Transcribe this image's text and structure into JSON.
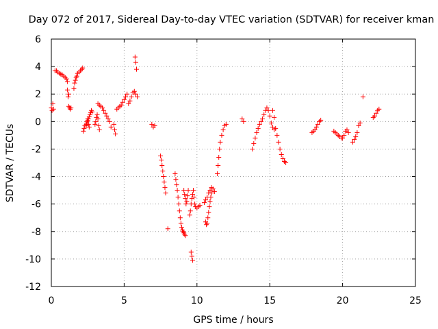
{
  "chart_data": {
    "type": "scatter",
    "title": "Day 072 of 2017, Sidereal Day-to-day VTEC variation (SDTVAR) for receiver kman",
    "xlabel": "GPS time / hours",
    "ylabel": "SDTVAR / TECUs",
    "xlim": [
      0,
      25
    ],
    "ylim": [
      -12,
      6
    ],
    "xticks": [
      0,
      5,
      10,
      15,
      20,
      25
    ],
    "yticks": [
      -12,
      -10,
      -8,
      -6,
      -4,
      -2,
      0,
      2,
      4,
      6
    ],
    "grid": true,
    "marker": "+",
    "color": "#ff0000",
    "segments": [
      {
        "x": [
          0.0,
          0.05,
          0.1,
          0.15
        ],
        "y": [
          1.0,
          0.8,
          1.3,
          0.9
        ]
      },
      {
        "x": [
          0.25,
          0.35,
          0.45,
          0.55,
          0.65,
          0.75,
          0.85,
          0.95,
          1.05,
          1.1
        ],
        "y": [
          3.7,
          3.7,
          3.6,
          3.5,
          3.45,
          3.4,
          3.3,
          3.2,
          3.1,
          2.9
        ]
      },
      {
        "x": [
          1.1,
          1.15,
          1.2
        ],
        "y": [
          2.3,
          1.8,
          2.0
        ]
      },
      {
        "x": [
          1.2,
          1.25,
          1.3,
          1.35
        ],
        "y": [
          1.1,
          1.0,
          0.9,
          1.0
        ]
      },
      {
        "x": [
          1.55,
          1.6,
          1.65,
          1.7,
          1.75,
          1.8,
          1.9,
          2.0,
          2.1,
          2.15
        ],
        "y": [
          2.4,
          2.8,
          3.0,
          3.2,
          3.3,
          3.5,
          3.6,
          3.7,
          3.8,
          3.9
        ]
      },
      {
        "x": [
          2.2,
          2.25,
          2.3,
          2.4,
          2.45,
          2.5,
          2.55,
          2.6,
          2.65,
          2.7,
          2.75,
          2.8
        ],
        "y": [
          -0.7,
          -0.5,
          -0.3,
          -0.2,
          0.0,
          0.1,
          0.2,
          0.35,
          0.5,
          0.65,
          0.8,
          0.7
        ]
      },
      {
        "x": [
          2.4,
          2.45,
          2.5,
          2.55,
          2.6
        ],
        "y": [
          -0.3,
          -0.1,
          0.2,
          -0.2,
          -0.4
        ]
      },
      {
        "x": [
          3.0,
          3.05,
          3.1,
          3.15,
          3.2,
          3.25,
          3.3
        ],
        "y": [
          -0.2,
          0.0,
          0.3,
          0.5,
          0.2,
          -0.3,
          -0.6
        ]
      },
      {
        "x": [
          3.2,
          3.3,
          3.4,
          3.5,
          3.6,
          3.7,
          3.8,
          3.9,
          4.0,
          4.1
        ],
        "y": [
          1.3,
          1.2,
          1.1,
          1.0,
          0.8,
          0.6,
          0.4,
          0.2,
          0.0,
          -0.4
        ]
      },
      {
        "x": [
          4.3,
          4.35,
          4.4
        ],
        "y": [
          -0.2,
          -0.6,
          -0.9
        ]
      },
      {
        "x": [
          4.5,
          4.6,
          4.7,
          4.8,
          4.9,
          5.0,
          5.1,
          5.2
        ],
        "y": [
          0.9,
          1.0,
          1.1,
          1.2,
          1.4,
          1.6,
          1.8,
          2.0
        ]
      },
      {
        "x": [
          5.3,
          5.4,
          5.5,
          5.6,
          5.7,
          5.8,
          5.9
        ],
        "y": [
          1.3,
          1.5,
          1.8,
          2.1,
          2.2,
          2.0,
          1.8
        ]
      },
      {
        "x": [
          5.75,
          5.8,
          5.85
        ],
        "y": [
          4.7,
          4.3,
          3.8
        ]
      },
      {
        "x": [
          6.9,
          7.0,
          7.1
        ],
        "y": [
          -0.2,
          -0.4,
          -0.3
        ]
      },
      {
        "x": [
          7.5,
          7.55,
          7.6,
          7.65,
          7.7,
          7.75,
          7.8,
          7.85
        ],
        "y": [
          -2.5,
          -2.8,
          -3.2,
          -3.6,
          -4.0,
          -4.4,
          -4.8,
          -5.2
        ]
      },
      {
        "x": [
          8.0
        ],
        "y": [
          -7.8
        ]
      },
      {
        "x": [
          8.5,
          8.55,
          8.6,
          8.65,
          8.7,
          8.75,
          8.8,
          8.85,
          8.9,
          8.95,
          9.0,
          9.05,
          9.1,
          9.15,
          9.2
        ],
        "y": [
          -3.8,
          -4.2,
          -4.6,
          -5.0,
          -5.5,
          -6.0,
          -6.5,
          -7.0,
          -7.4,
          -7.7,
          -7.9,
          -8.0,
          -8.1,
          -8.2,
          -8.3
        ]
      },
      {
        "x": [
          9.1,
          9.15,
          9.2,
          9.25,
          9.3,
          9.35,
          9.4
        ],
        "y": [
          -5.0,
          -5.3,
          -5.6,
          -6.0,
          -5.8,
          -5.4,
          -5.0
        ]
      },
      {
        "x": [
          9.5,
          9.55,
          9.6,
          9.65,
          9.7,
          9.75,
          9.8,
          9.85,
          9.9,
          10.0,
          10.1,
          10.2
        ],
        "y": [
          -6.8,
          -6.5,
          -6.0,
          -5.6,
          -5.3,
          -5.0,
          -5.5,
          -6.0,
          -6.2,
          -6.3,
          -6.2,
          -6.1
        ]
      },
      {
        "x": [
          9.6,
          9.65,
          9.7
        ],
        "y": [
          -9.5,
          -9.8,
          -10.1
        ]
      },
      {
        "x": [
          10.5,
          10.6,
          10.7,
          10.8,
          10.9,
          11.0,
          11.1,
          11.2
        ],
        "y": [
          -5.9,
          -5.7,
          -5.5,
          -5.2,
          -5.0,
          -4.8,
          -4.9,
          -5.1
        ]
      },
      {
        "x": [
          10.6,
          10.65,
          10.7,
          10.75,
          10.8,
          10.85,
          10.9,
          10.95,
          11.0
        ],
        "y": [
          -7.3,
          -7.5,
          -7.4,
          -7.0,
          -6.6,
          -6.2,
          -5.8,
          -5.5,
          -5.2
        ]
      },
      {
        "x": [
          11.4,
          11.45,
          11.5,
          11.55,
          11.6,
          11.7,
          11.8,
          11.9,
          12.0
        ],
        "y": [
          -3.8,
          -3.2,
          -2.6,
          -2.0,
          -1.5,
          -1.0,
          -0.6,
          -0.3,
          -0.2
        ]
      },
      {
        "x": [
          13.1,
          13.2
        ],
        "y": [
          0.2,
          0.0
        ]
      },
      {
        "x": [
          13.8,
          13.9,
          14.0,
          14.1,
          14.2,
          14.3,
          14.4,
          14.5,
          14.6,
          14.7,
          14.8,
          14.9,
          15.0,
          15.1,
          15.2,
          15.3
        ],
        "y": [
          -2.0,
          -1.6,
          -1.2,
          -0.8,
          -0.5,
          -0.2,
          0.0,
          0.2,
          0.5,
          0.8,
          1.0,
          0.8,
          0.4,
          -0.1,
          -0.4,
          -0.6
        ]
      },
      {
        "x": [
          15.2,
          15.3,
          15.4,
          15.5,
          15.6,
          15.7,
          15.8,
          15.9,
          16.0,
          16.1
        ],
        "y": [
          0.8,
          0.3,
          -0.5,
          -1.0,
          -1.5,
          -2.0,
          -2.4,
          -2.7,
          -2.9,
          -3.0
        ]
      },
      {
        "x": [
          17.9,
          18.0,
          18.1,
          18.2,
          18.3,
          18.4,
          18.5
        ],
        "y": [
          -0.8,
          -0.7,
          -0.6,
          -0.4,
          -0.2,
          0.0,
          0.1
        ]
      },
      {
        "x": [
          19.4,
          19.5,
          19.6,
          19.7,
          19.8,
          19.9,
          20.0
        ],
        "y": [
          -0.7,
          -0.8,
          -0.9,
          -1.0,
          -1.1,
          -1.2,
          -1.2
        ]
      },
      {
        "x": [
          20.1,
          20.2,
          20.3,
          20.4
        ],
        "y": [
          -1.0,
          -0.7,
          -0.6,
          -0.8
        ]
      },
      {
        "x": [
          20.7,
          20.8,
          20.9,
          21.0,
          21.1,
          21.2
        ],
        "y": [
          -1.5,
          -1.3,
          -1.1,
          -0.8,
          -0.3,
          -0.1
        ]
      },
      {
        "x": [
          21.4
        ],
        "y": [
          1.8
        ]
      },
      {
        "x": [
          22.1,
          22.2,
          22.3,
          22.4,
          22.5
        ],
        "y": [
          0.3,
          0.4,
          0.6,
          0.8,
          0.9
        ]
      }
    ]
  }
}
